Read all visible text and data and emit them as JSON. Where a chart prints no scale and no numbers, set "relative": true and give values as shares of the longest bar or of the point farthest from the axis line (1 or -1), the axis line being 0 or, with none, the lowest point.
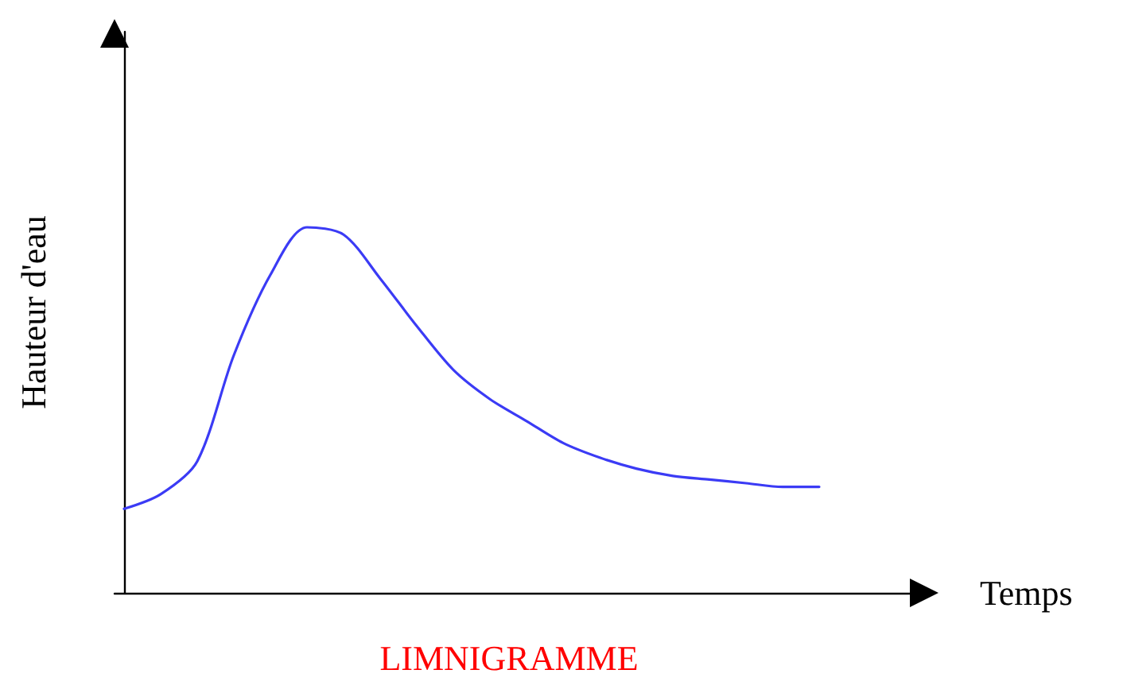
{
  "chart_data": {
    "type": "line",
    "title": "LIMNIGRAMME",
    "xlabel": "Temps",
    "ylabel": "Hauteur d'eau",
    "categories": [
      null,
      null,
      null,
      null,
      null,
      null,
      null,
      null,
      null,
      null,
      null,
      null,
      null,
      null,
      null,
      null,
      null,
      null,
      null,
      null
    ],
    "values": [
      0.23,
      0.27,
      0.36,
      0.65,
      0.87,
      1,
      0.98,
      0.86,
      0.73,
      0.61,
      0.53,
      0.47,
      0.41,
      0.37,
      0.34,
      0.32,
      0.31,
      0.3,
      0.29,
      0.29
    ],
    "color": "#3b3bf5",
    "relative": true,
    "marker": "none",
    "line_style": "solid"
  }
}
